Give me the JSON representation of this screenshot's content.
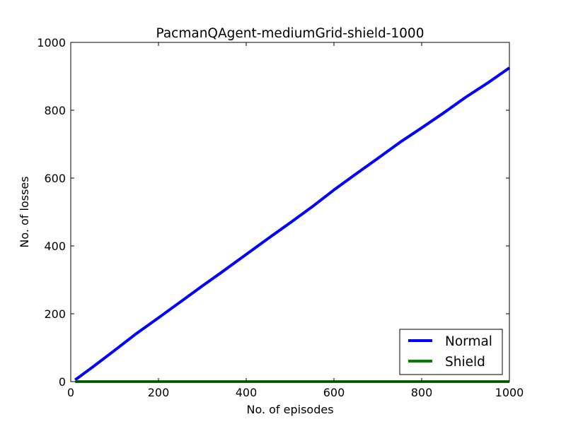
{
  "chart_data": {
    "type": "line",
    "title": "PacmanQAgent-mediumGrid-shield-1000",
    "xlabel": "No. of episodes",
    "ylabel": "No. of losses",
    "xlim": [
      0,
      1000
    ],
    "ylim": [
      0,
      1000
    ],
    "xticks": [
      0,
      200,
      400,
      600,
      800,
      1000
    ],
    "yticks": [
      0,
      200,
      400,
      600,
      800,
      1000
    ],
    "grid": false,
    "legend_position": "bottom-right",
    "series": [
      {
        "name": "Normal",
        "color": "#0000ff",
        "x": [
          10,
          50,
          100,
          150,
          200,
          250,
          300,
          350,
          400,
          450,
          500,
          550,
          600,
          650,
          700,
          750,
          800,
          850,
          900,
          950,
          1000
        ],
        "y": [
          5,
          43,
          92,
          142,
          188,
          235,
          282,
          328,
          375,
          422,
          468,
          515,
          565,
          612,
          658,
          705,
          748,
          792,
          838,
          880,
          925
        ]
      },
      {
        "name": "Shield",
        "color": "#008000",
        "x": [
          10,
          1000
        ],
        "y": [
          0,
          0
        ]
      }
    ]
  }
}
